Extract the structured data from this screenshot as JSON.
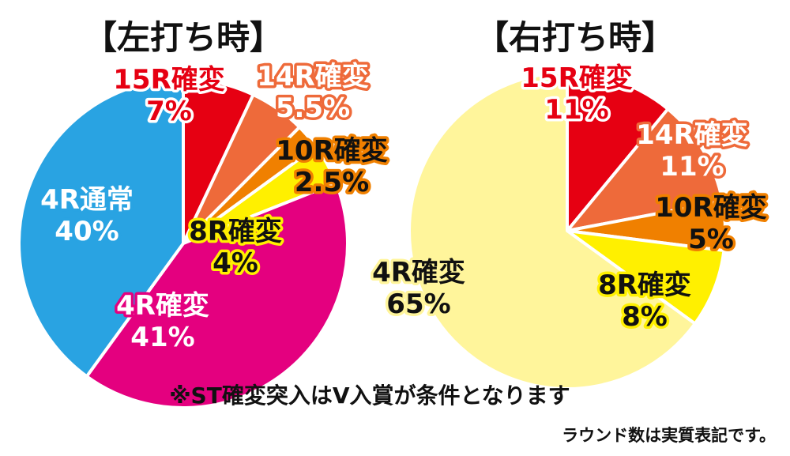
{
  "chart_data": [
    {
      "type": "pie",
      "title": "【左打ち時】",
      "slices": [
        {
          "label": "15R確変",
          "value_label": "7%",
          "value": 7,
          "color": "#e60012",
          "text_fill": "#e60012",
          "text_stroke": "#ffffff"
        },
        {
          "label": "14R確変",
          "value_label": "5.5%",
          "value": 5.5,
          "color": "#ee6a3a",
          "text_fill": "#ffffff",
          "text_stroke": "#ee6a3a"
        },
        {
          "label": "10R確変",
          "value_label": "2.5%",
          "value": 2.5,
          "color": "#f08000",
          "text_fill": "#111111",
          "text_stroke": "#f08000"
        },
        {
          "label": "8R確変",
          "value_label": "4%",
          "value": 4,
          "color": "#fff000",
          "text_fill": "#111111",
          "text_stroke": "#fff000"
        },
        {
          "label": "4R確変",
          "value_label": "41%",
          "value": 41,
          "color": "#e4007f",
          "text_fill": "#ffffff",
          "text_stroke": "#e4007f"
        },
        {
          "label": "4R通常",
          "value_label": "40%",
          "value": 40,
          "color": "#29a3e2",
          "text_fill": "#ffffff",
          "text_stroke": "#29a3e2"
        }
      ]
    },
    {
      "type": "pie",
      "title": "【右打ち時】",
      "slices": [
        {
          "label": "15R確変",
          "value_label": "11%",
          "value": 11,
          "color": "#e60012",
          "text_fill": "#e60012",
          "text_stroke": "#ffffff"
        },
        {
          "label": "14R確変",
          "value_label": "11%",
          "value": 11,
          "color": "#ee6a3a",
          "text_fill": "#ffffff",
          "text_stroke": "#ee6a3a"
        },
        {
          "label": "10R確変",
          "value_label": "5%",
          "value": 5,
          "color": "#f08000",
          "text_fill": "#111111",
          "text_stroke": "#f08000"
        },
        {
          "label": "8R確変",
          "value_label": "8%",
          "value": 8,
          "color": "#fff000",
          "text_fill": "#111111",
          "text_stroke": "#fff000"
        },
        {
          "label": "4R確変",
          "value_label": "65%",
          "value": 65,
          "color": "#fff59b",
          "text_fill": "#111111",
          "text_stroke": "#fff59b"
        }
      ]
    }
  ],
  "notes": {
    "main": "※ST確変突入はV入賞が条件となります",
    "sub": "ラウンド数は実質表記です。"
  }
}
